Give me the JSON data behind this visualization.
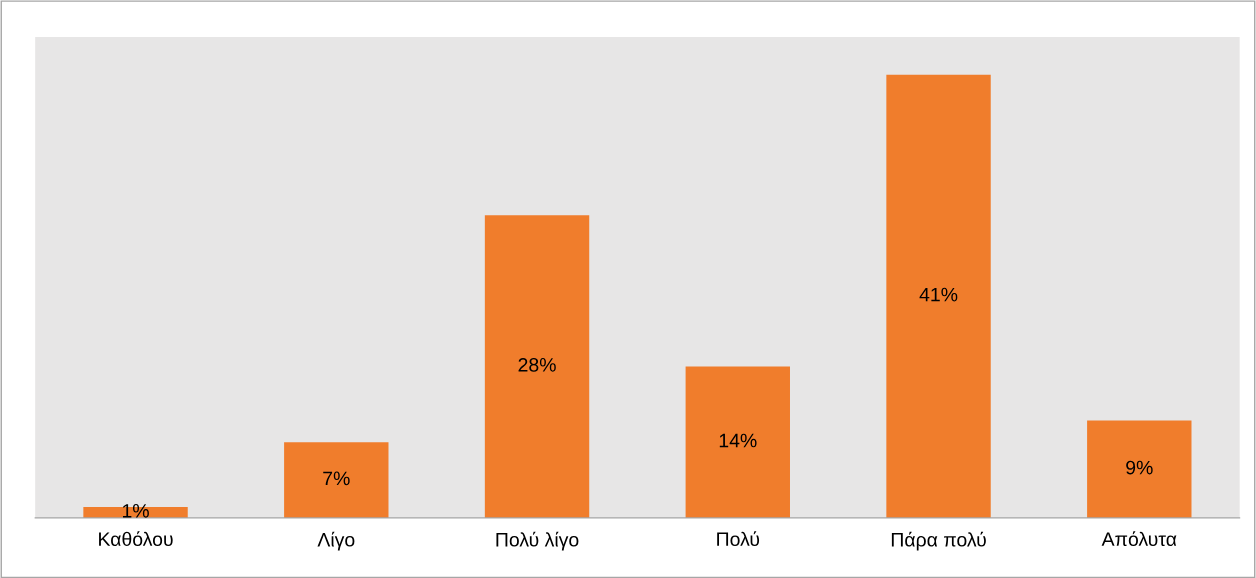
{
  "chart_data": {
    "type": "bar",
    "categories": [
      "Καθόλου",
      "Λίγο",
      "Πολύ λίγο",
      "Πολύ",
      "Πάρα πολύ",
      "Απόλυτα"
    ],
    "values": [
      1,
      7,
      28,
      14,
      41,
      9
    ],
    "value_labels": [
      "1%",
      "7%",
      "28%",
      "14%",
      "41%",
      "9%"
    ],
    "color": "#f07d2c",
    "legend": false
  }
}
